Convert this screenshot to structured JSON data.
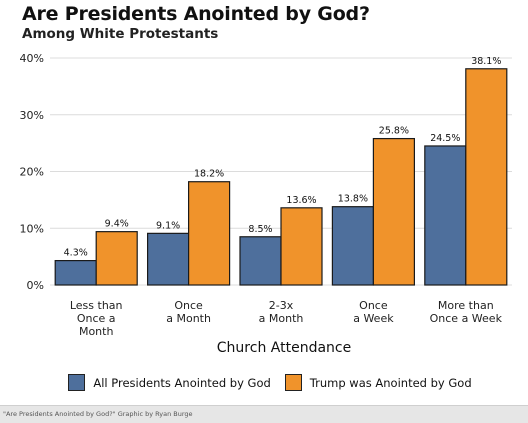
{
  "chart_data": {
    "type": "bar",
    "title": "Are Presidents Anointed by God?",
    "subtitle": "Among White Protestants",
    "xlabel": "Church Attendance",
    "ylabel": "",
    "ylim": [
      0,
      40
    ],
    "yticks": [
      "0%",
      "10%",
      "20%",
      "30%",
      "40%"
    ],
    "ytick_values": [
      0,
      10,
      20,
      30,
      40
    ],
    "grid": true,
    "legend_position": "bottom",
    "categories": [
      [
        "Less than",
        "Once a",
        "Month"
      ],
      [
        "Once",
        "a Month"
      ],
      [
        "2-3x",
        "a Month"
      ],
      [
        "Once",
        "a Week"
      ],
      [
        "More than",
        "Once a Week"
      ]
    ],
    "series": [
      {
        "name": "All Presidents Anointed by God",
        "color": "#4e6f9c",
        "values": [
          4.3,
          9.1,
          8.5,
          13.8,
          24.5
        ],
        "labels": [
          "4.3%",
          "9.1%",
          "8.5%",
          "13.8%",
          "24.5%"
        ]
      },
      {
        "name": "Trump was Anointed by God",
        "color": "#f0932b",
        "values": [
          9.4,
          18.2,
          13.6,
          25.8,
          38.1
        ],
        "labels": [
          "9.4%",
          "18.2%",
          "13.6%",
          "25.8%",
          "38.1%"
        ]
      }
    ]
  },
  "footer": "\"Are Presidents Anointed by God?\" Graphic by Ryan Burge"
}
